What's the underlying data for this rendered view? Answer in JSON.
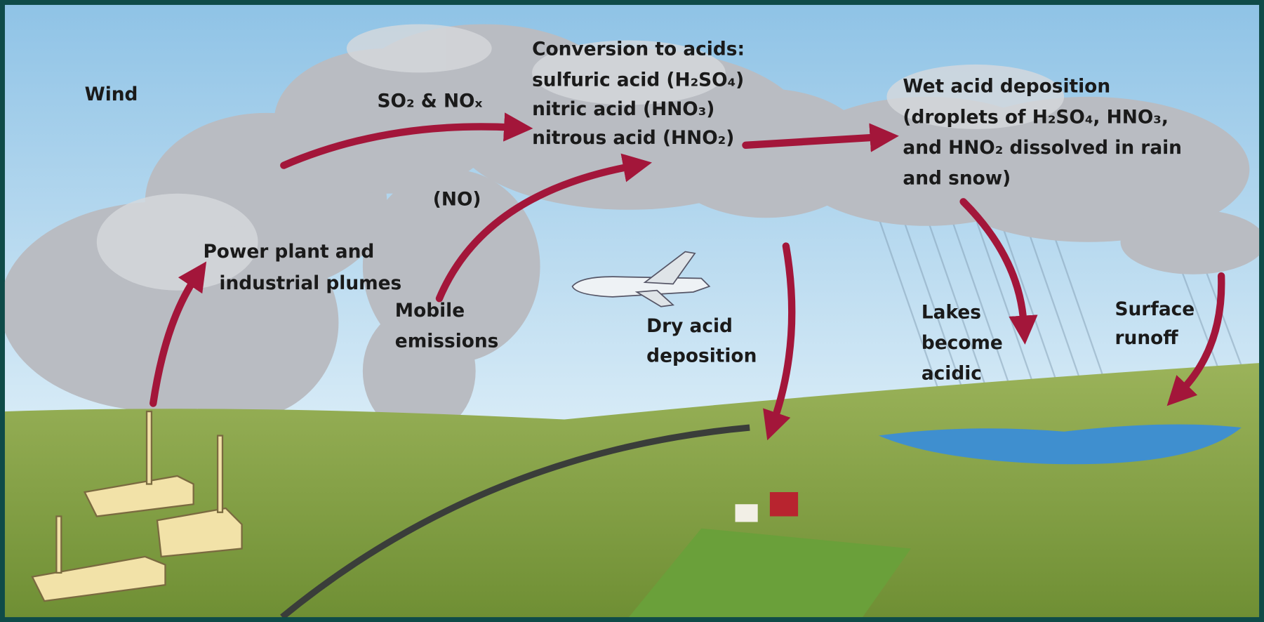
{
  "labels": {
    "wind": "Wind",
    "emissions_gas": "SO₂ & NOₓ",
    "no": "(NO)",
    "conversion": [
      "Conversion to acids:",
      "sulfuric acid (H₂SO₄)",
      "nitric acid (HNO₃)",
      "nitrous acid (HNO₂)"
    ],
    "wet": [
      "Wet acid deposition",
      "(droplets of H₂SO₄, HNO₃,",
      "and HNO₂ dissolved in rain",
      "and snow)"
    ],
    "plumes": [
      "Power plant and",
      "industrial plumes"
    ],
    "mobile": [
      "Mobile",
      "emissions"
    ],
    "dry": [
      "Dry acid",
      "deposition"
    ],
    "lakes": [
      "Lakes",
      "become",
      "acidic"
    ],
    "runoff": [
      "Surface",
      "runoff"
    ]
  }
}
